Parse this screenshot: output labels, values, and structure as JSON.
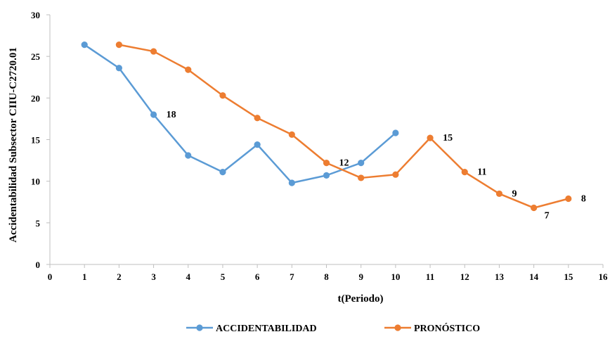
{
  "chart_data": {
    "type": "line",
    "xlabel": "t(Periodo)",
    "ylabel": "Accidentabilidad Subsector CIIU-C2720.01",
    "xlim": [
      0,
      16
    ],
    "ylim": [
      0,
      30
    ],
    "x_ticks": [
      0,
      1,
      2,
      3,
      4,
      5,
      6,
      7,
      8,
      9,
      10,
      11,
      12,
      13,
      14,
      15,
      16
    ],
    "y_ticks": [
      0,
      5,
      10,
      15,
      20,
      25,
      30
    ],
    "grid": false,
    "legend": "bottom",
    "series": [
      {
        "name": "ACCIDENTABILIDAD",
        "color": "#5B9BD5",
        "x": [
          1,
          2,
          3,
          4,
          5,
          6,
          7,
          8,
          9,
          10
        ],
        "y": [
          26.4,
          23.6,
          18.0,
          13.1,
          11.1,
          14.4,
          9.8,
          10.7,
          12.2,
          15.8
        ]
      },
      {
        "name": "PRONÓSTICO",
        "color": "#ED7D31",
        "x": [
          2,
          3,
          4,
          5,
          6,
          7,
          8,
          9,
          10,
          11,
          12,
          13,
          14,
          15
        ],
        "y": [
          26.4,
          25.6,
          23.4,
          20.3,
          17.6,
          15.6,
          12.2,
          10.4,
          10.8,
          15.2,
          11.1,
          8.5,
          6.8,
          7.9
        ]
      }
    ],
    "data_labels": [
      {
        "text": "18",
        "x": 3,
        "y": 18.0
      },
      {
        "text": "12",
        "x": 8,
        "y": 12.2
      },
      {
        "text": "15",
        "x": 11,
        "y": 15.2
      },
      {
        "text": "11",
        "x": 12,
        "y": 11.1
      },
      {
        "text": "9",
        "x": 13,
        "y": 8.5
      },
      {
        "text": "7",
        "x": 14,
        "y": 6.8
      },
      {
        "text": "8",
        "x": 15,
        "y": 7.9
      }
    ]
  }
}
